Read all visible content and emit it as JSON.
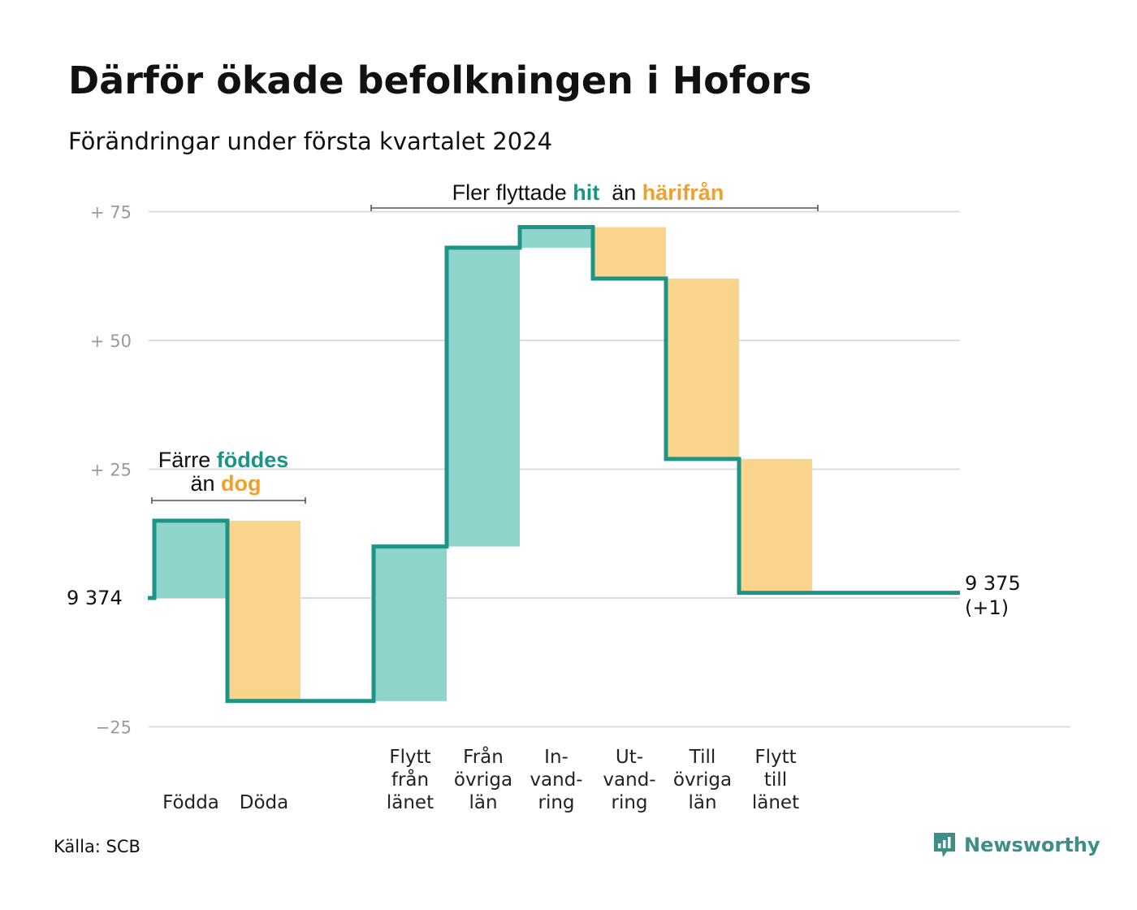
{
  "title": "Därför ökade befolkningen i Hofors",
  "subtitle": "Förändringar under första kvartalet 2024",
  "source": "Källa: SCB",
  "logo": {
    "text": "Newsworthy",
    "icon": "newsworthy-logo-icon"
  },
  "colors": {
    "increase": "#8ed4cb",
    "decrease": "#fbd48c",
    "line": "#1e9488",
    "grid": "#dddddd"
  },
  "chart_data": {
    "type": "waterfall",
    "title": "Därför ökade befolkningen i Hofors",
    "subtitle": "Förändringar under första kvartalet 2024",
    "base_value": 9374,
    "base_label": "9  374",
    "end_value": 9375,
    "end_label": "9 375",
    "end_change_label": "(+1)",
    "y_ticks": [
      {
        "value": 75,
        "label": "+  75"
      },
      {
        "value": 50,
        "label": "+  50"
      },
      {
        "value": 25,
        "label": "+  25"
      },
      {
        "value": -25,
        "label": "−25"
      }
    ],
    "ylim": [
      -25,
      75
    ],
    "grid": true,
    "steps": [
      {
        "label": "Födda",
        "change": 15,
        "cumulative": 15,
        "type": "increase"
      },
      {
        "label": "Döda",
        "change": -35,
        "cumulative": -20,
        "type": "decrease"
      },
      {
        "label": "",
        "change": 0,
        "cumulative": -20,
        "type": "gap"
      },
      {
        "label": "Flytt från länet",
        "change": 30,
        "cumulative": 10,
        "type": "increase"
      },
      {
        "label": "Från övriga län",
        "change": 58,
        "cumulative": 68,
        "type": "increase"
      },
      {
        "label": "In-vand-ring",
        "change": 4,
        "cumulative": 72,
        "type": "increase"
      },
      {
        "label": "Ut-vand-ring",
        "change": -10,
        "cumulative": 62,
        "type": "decrease"
      },
      {
        "label": "Till övriga län",
        "change": -35,
        "cumulative": 27,
        "type": "decrease"
      },
      {
        "label": "Flytt till länet",
        "change": -26,
        "cumulative": 1,
        "type": "decrease"
      }
    ],
    "category_labels": [
      {
        "lines": [
          "Födda"
        ]
      },
      {
        "lines": [
          "Döda"
        ]
      },
      {
        "lines": []
      },
      {
        "lines": [
          "Flytt",
          "från",
          "länet"
        ]
      },
      {
        "lines": [
          "Från",
          "övriga",
          "län"
        ]
      },
      {
        "lines": [
          "In-",
          "vand-",
          "ring"
        ]
      },
      {
        "lines": [
          "Ut-",
          "vand-",
          "ring"
        ]
      },
      {
        "lines": [
          "Till",
          "övriga",
          "län"
        ]
      },
      {
        "lines": [
          "Flytt",
          "till",
          "länet"
        ]
      }
    ],
    "annotations": [
      {
        "parts": [
          "Färre",
          "föddes",
          "än",
          "dog"
        ],
        "line1": {
          "pre": "Färre ",
          "in": "föddes"
        },
        "line2": {
          "pre": "än ",
          "out": "dog"
        }
      },
      {
        "pre": "Fler flyttade ",
        "in": "hit",
        "mid": "  än ",
        "out": "härifrån"
      }
    ]
  }
}
